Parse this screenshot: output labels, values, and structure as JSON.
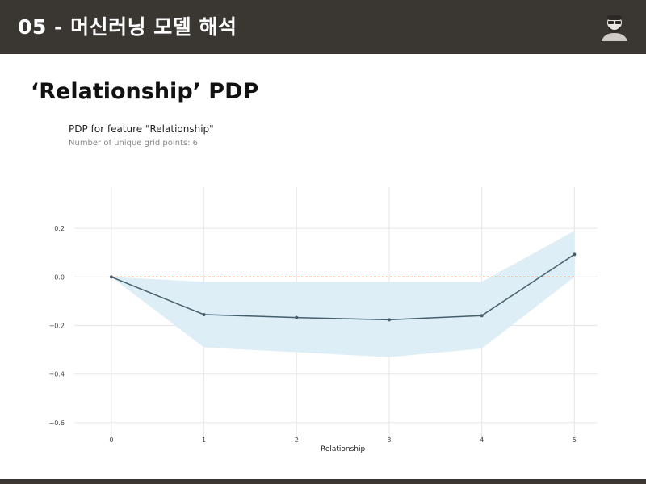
{
  "header": {
    "title": "05 - 머신러닝 모델 해석"
  },
  "slide": {
    "title": "‘Relationship’ PDP"
  },
  "chart_data": {
    "type": "line",
    "title": "PDP for feature \"Relationship\"",
    "subtitle": "Number of unique grid points: 6",
    "xlabel": "Relationship",
    "ylabel": "",
    "x": [
      0,
      1,
      2,
      3,
      4,
      5
    ],
    "values": [
      0.0,
      -0.155,
      -0.167,
      -0.176,
      -0.159,
      0.093
    ],
    "band_upper": [
      0.0,
      -0.02,
      -0.02,
      -0.02,
      -0.02,
      0.19
    ],
    "band_lower": [
      0.0,
      -0.29,
      -0.31,
      -0.33,
      -0.295,
      0.0
    ],
    "baseline": 0.0,
    "xlim": [
      -0.4,
      5.25
    ],
    "ylim": [
      -0.67,
      0.37
    ],
    "yticks": [
      0.2,
      0.0,
      -0.2,
      -0.4,
      -0.6
    ],
    "ytick_labels": [
      "0.2",
      "0.0",
      "−0.2",
      "−0.4",
      "−0.6"
    ],
    "xtick_labels": [
      "0",
      "1",
      "2",
      "3",
      "4",
      "5"
    ],
    "grid": true,
    "colors": {
      "line": "#455f6b",
      "band": "#ddeef7",
      "baseline": "#e0573a",
      "grid": "#e6e6e6"
    }
  }
}
